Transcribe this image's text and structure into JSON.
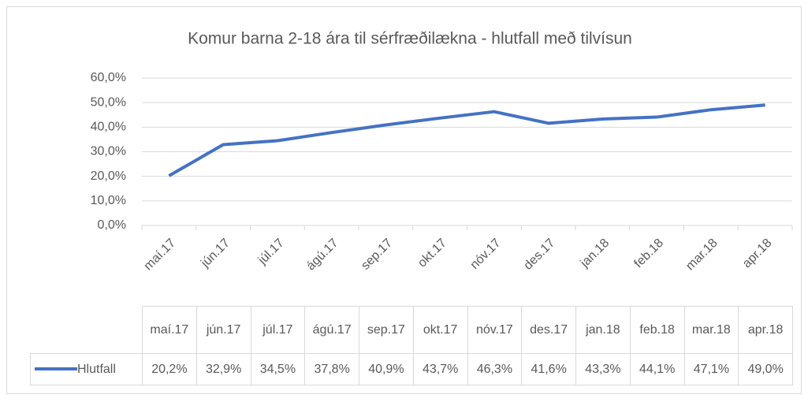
{
  "chart_data": {
    "type": "line",
    "title": "Komur barna 2-18 ára til sérfræðilækna - hlutfall með tilvísun",
    "categories": [
      "maí.17",
      "jún.17",
      "júl.17",
      "ágú.17",
      "sep.17",
      "okt.17",
      "nóv.17",
      "des.17",
      "jan.18",
      "feb.18",
      "mar.18",
      "apr.18"
    ],
    "series": [
      {
        "name": "Hlutfall",
        "color": "#4472c4",
        "values": [
          20.2,
          32.9,
          34.5,
          37.8,
          40.9,
          43.7,
          46.3,
          41.6,
          43.3,
          44.1,
          47.1,
          49.0
        ],
        "value_labels": [
          "20,2%",
          "32,9%",
          "34,5%",
          "37,8%",
          "40,9%",
          "43,7%",
          "46,3%",
          "41,6%",
          "43,3%",
          "44,1%",
          "47,1%",
          "49,0%"
        ]
      }
    ],
    "ylim": [
      0,
      60
    ],
    "yticks": [
      {
        "value": 0,
        "label": "0,0%"
      },
      {
        "value": 10,
        "label": "10,0%"
      },
      {
        "value": 20,
        "label": "20,0%"
      },
      {
        "value": 30,
        "label": "30,0%"
      },
      {
        "value": 40,
        "label": "40,0%"
      },
      {
        "value": 50,
        "label": "50,0%"
      },
      {
        "value": 60,
        "label": "60,0%"
      }
    ],
    "grid": true,
    "data_table": true
  }
}
